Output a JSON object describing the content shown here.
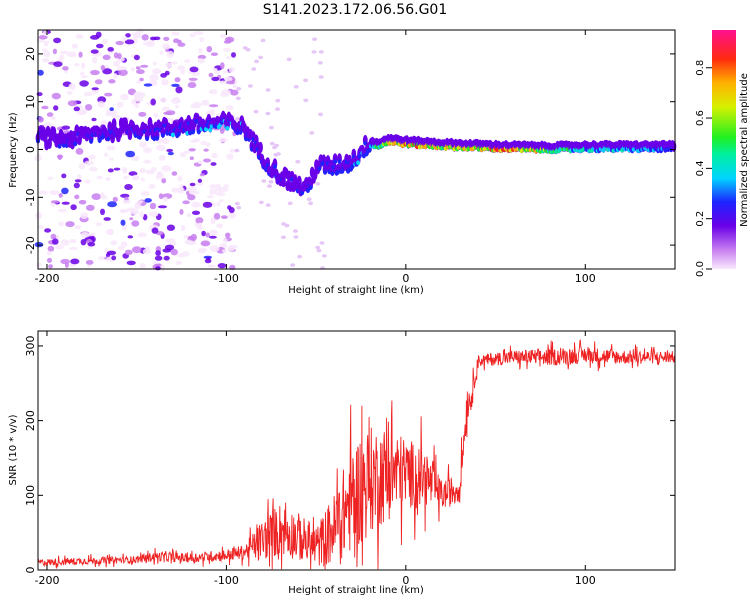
{
  "title": "S141.2023.172.06.56.G01",
  "chart_data": [
    {
      "type": "heatmap",
      "xlabel": "Height of straight line (km)",
      "ylabel": "Frequency (Hz)",
      "xlim": [
        -205,
        150
      ],
      "ylim": [
        -25,
        25
      ],
      "xticks": [
        -200,
        -100,
        0,
        100
      ],
      "yticks": [
        -20,
        -10,
        0,
        10,
        20
      ],
      "colorbar": {
        "label": "Normalized spectral amplitude",
        "range": [
          0,
          0.95
        ],
        "ticks": [
          0.0,
          0.2,
          0.4,
          0.6,
          0.8
        ]
      },
      "ridge": {
        "x": [
          -205,
          -190,
          -170,
          -150,
          -140,
          -120,
          -100,
          -90,
          -80,
          -70,
          -60,
          -55,
          -50,
          -40,
          -30,
          -20,
          -15,
          -10,
          0,
          20,
          40,
          55,
          80,
          100,
          120,
          150
        ],
        "freq": [
          2,
          1.5,
          3,
          4,
          3.5,
          4.5,
          5,
          4,
          -2,
          -6,
          -8,
          -9,
          -4,
          -4,
          -3,
          1,
          0.5,
          1.5,
          1,
          0.5,
          0.2,
          0,
          -0.2,
          0,
          0,
          0
        ],
        "amplitude": [
          0.25,
          0.25,
          0.3,
          0.3,
          0.32,
          0.35,
          0.4,
          0.35,
          0.3,
          0.3,
          0.28,
          0.28,
          0.3,
          0.32,
          0.35,
          0.4,
          0.6,
          0.7,
          0.85,
          0.7,
          0.75,
          0.9,
          0.6,
          0.45,
          0.45,
          0.35
        ]
      }
    },
    {
      "type": "line",
      "xlabel": "Height of straight line (km)",
      "ylabel": "SNR (10 * v/v)",
      "xlim": [
        -205,
        150
      ],
      "ylim": [
        0,
        320
      ],
      "xticks": [
        -200,
        -100,
        0,
        100
      ],
      "yticks": [
        0,
        100,
        200,
        300
      ],
      "series": [
        {
          "color": "#ee2222",
          "x": [
            -205,
            -180,
            -150,
            -140,
            -120,
            -100,
            -90,
            -80,
            -70,
            -60,
            -50,
            -40,
            -30,
            -25,
            -20,
            -10,
            0,
            10,
            20,
            30,
            34,
            37,
            40,
            60,
            80,
            100,
            120,
            150
          ],
          "y": [
            10,
            12,
            14,
            18,
            16,
            20,
            24,
            40,
            55,
            45,
            30,
            55,
            95,
            110,
            120,
            130,
            130,
            125,
            100,
            110,
            220,
            235,
            280,
            285,
            285,
            288,
            285,
            285
          ],
          "spread": [
            6,
            6,
            6,
            8,
            8,
            10,
            12,
            35,
            45,
            40,
            35,
            60,
            90,
            95,
            90,
            80,
            60,
            50,
            25,
            25,
            30,
            20,
            10,
            12,
            14,
            14,
            12,
            10
          ]
        }
      ]
    }
  ]
}
